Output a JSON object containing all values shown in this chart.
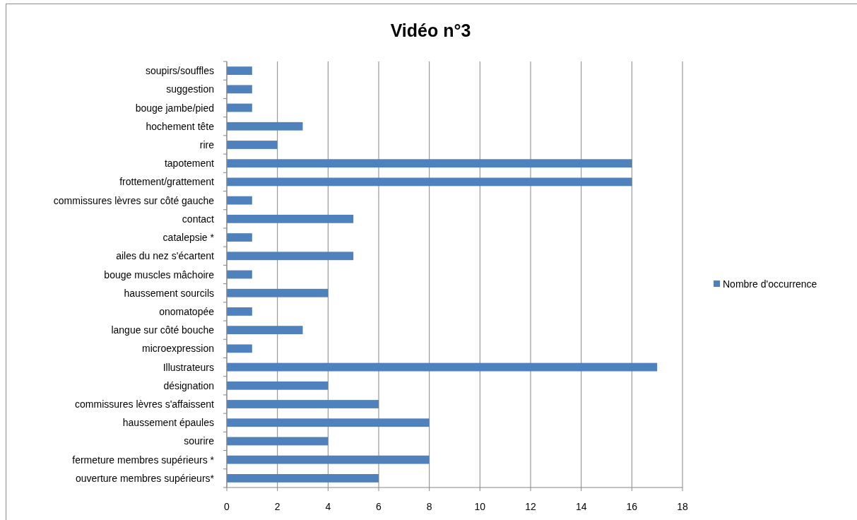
{
  "chart_data": {
    "type": "bar",
    "orientation": "horizontal",
    "title": "Vidéo n°3",
    "categories": [
      "soupirs/souffles",
      "suggestion",
      "bouge jambe/pied",
      "hochement tête",
      "rire",
      "tapotement",
      "frottement/grattement",
      "commissures lèvres sur côté gauche",
      "contact",
      "catalepsie *",
      "ailes du nez s'écartent",
      "bouge muscles mâchoire",
      "haussement sourcils",
      "onomatopée",
      "langue sur côté bouche",
      "microexpression",
      "Illustrateurs",
      "désignation",
      "commissures lèvres s'affaissent",
      "haussement épaules",
      "sourire",
      "fermeture membres supérieurs *",
      "ouverture membres supérieurs*"
    ],
    "series": [
      {
        "name": "Nombre d'occurrence",
        "color": "#4f81bd",
        "values": [
          1,
          1,
          1,
          3,
          2,
          16,
          16,
          1,
          5,
          1,
          5,
          1,
          4,
          1,
          3,
          1,
          17,
          4,
          6,
          8,
          4,
          8,
          6
        ]
      }
    ],
    "xlim": [
      0,
      18
    ],
    "xticks": [
      0,
      2,
      4,
      6,
      8,
      10,
      12,
      14,
      16,
      18
    ],
    "grid": "x",
    "legend": "right"
  }
}
